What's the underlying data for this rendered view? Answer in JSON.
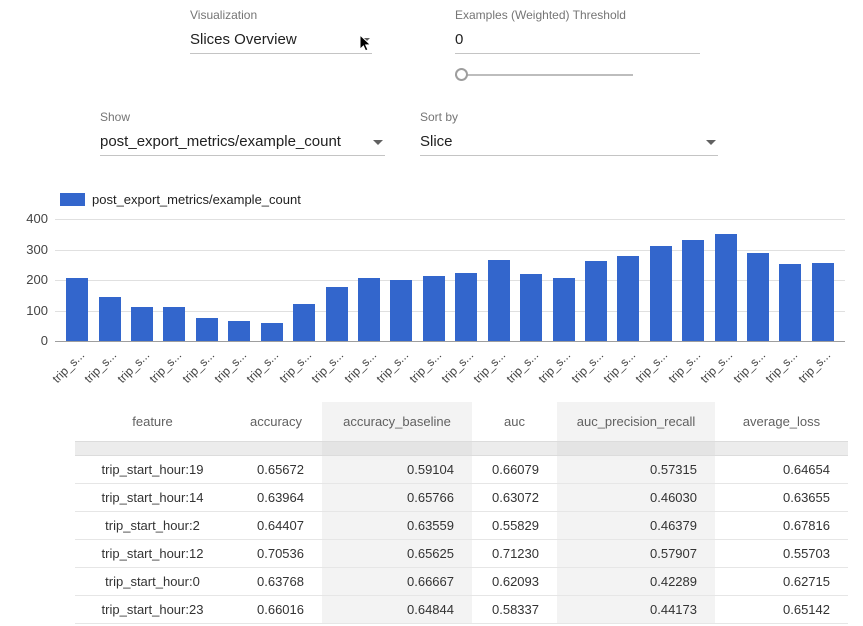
{
  "controls": {
    "visualization": {
      "label": "Visualization",
      "value": "Slices Overview"
    },
    "threshold": {
      "label": "Examples (Weighted) Threshold",
      "value": "0"
    },
    "show": {
      "label": "Show",
      "value": "post_export_metrics/example_count"
    },
    "sort_by": {
      "label": "Sort by",
      "value": "Slice"
    }
  },
  "chart_data": {
    "type": "bar",
    "legend": [
      "post_export_metrics/example_count"
    ],
    "series_color": "#3366cc",
    "categories": [
      "trip_s...",
      "trip_s...",
      "trip_s...",
      "trip_s...",
      "trip_s...",
      "trip_s...",
      "trip_s...",
      "trip_s...",
      "trip_s...",
      "trip_s...",
      "trip_s...",
      "trip_s...",
      "trip_s...",
      "trip_s...",
      "trip_s...",
      "trip_s...",
      "trip_s...",
      "trip_s...",
      "trip_s...",
      "trip_s...",
      "trip_s...",
      "trip_s...",
      "trip_s...",
      "trip_s..."
    ],
    "values": [
      205,
      143,
      112,
      110,
      75,
      65,
      60,
      120,
      178,
      205,
      200,
      212,
      222,
      265,
      220,
      208,
      262,
      278,
      312,
      332,
      350,
      290,
      252,
      255
    ],
    "xlabel": "",
    "ylabel": "",
    "ylim": [
      0,
      400
    ],
    "yticks": [
      0,
      100,
      200,
      300,
      400
    ],
    "grid": true,
    "legend_position": "top-left"
  },
  "table": {
    "columns": [
      "feature",
      "accuracy",
      "accuracy_baseline",
      "auc",
      "auc_precision_recall",
      "average_loss"
    ],
    "rows": [
      [
        "trip_start_hour:19",
        "0.65672",
        "0.59104",
        "0.66079",
        "0.57315",
        "0.64654"
      ],
      [
        "trip_start_hour:14",
        "0.63964",
        "0.65766",
        "0.63072",
        "0.46030",
        "0.63655"
      ],
      [
        "trip_start_hour:2",
        "0.64407",
        "0.63559",
        "0.55829",
        "0.46379",
        "0.67816"
      ],
      [
        "trip_start_hour:12",
        "0.70536",
        "0.65625",
        "0.71230",
        "0.57907",
        "0.55703"
      ],
      [
        "trip_start_hour:0",
        "0.63768",
        "0.66667",
        "0.62093",
        "0.42289",
        "0.62715"
      ],
      [
        "trip_start_hour:23",
        "0.66016",
        "0.64844",
        "0.58337",
        "0.44173",
        "0.65142"
      ]
    ]
  }
}
